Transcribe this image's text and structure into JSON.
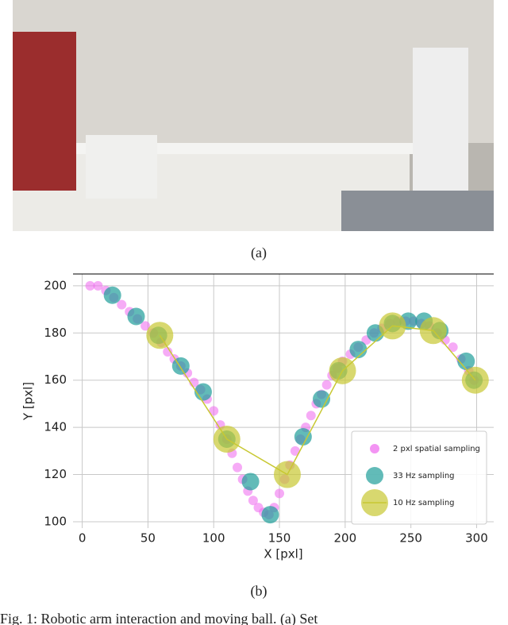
{
  "figure": {
    "sub_a": "(a)",
    "sub_b": "(b)",
    "caption": "Fig. 1: Robotic arm interaction and moving ball. (a) Set"
  },
  "chart_data": {
    "type": "scatter",
    "x_label": "X [pxl]",
    "y_label": "Y [pxl]",
    "xlim": [
      -7,
      313
    ],
    "ylim": [
      97.3,
      205
    ],
    "xticks": [
      0,
      50,
      100,
      150,
      200,
      250,
      300
    ],
    "yticks": [
      100,
      120,
      140,
      160,
      180,
      200
    ],
    "grid": true,
    "legend": "lower right",
    "series": [
      {
        "name": "2 pxl spatial sampling",
        "color": "#ee66ee",
        "x": [
          6,
          12,
          18,
          24,
          30,
          36,
          42,
          48,
          54,
          60,
          65,
          70,
          75,
          80,
          85,
          90,
          95,
          100,
          105,
          110,
          114,
          118,
          122,
          126,
          130,
          134,
          138,
          142,
          146,
          150,
          154,
          158,
          162,
          166,
          170,
          174,
          178,
          182,
          186,
          190,
          194,
          198,
          204,
          210,
          216,
          222,
          228,
          234,
          240,
          246,
          252,
          258,
          264,
          270,
          276,
          282,
          288,
          294,
          298
        ],
        "values": [
          200,
          200,
          198,
          195,
          192,
          189,
          186,
          183,
          180,
          176,
          172,
          169,
          166,
          163,
          159,
          156,
          152,
          147,
          141,
          135,
          129,
          123,
          118,
          113,
          109,
          106,
          104,
          103,
          106,
          112,
          118,
          124,
          130,
          135,
          140,
          145,
          150,
          154,
          158,
          162,
          165,
          168,
          171,
          174,
          177,
          180,
          182,
          184,
          185,
          185,
          185,
          184,
          183,
          180,
          177,
          174,
          169,
          164,
          160
        ]
      },
      {
        "name": "33 Hz sampling",
        "color": "#1f9e9a",
        "x": [
          23,
          41,
          58,
          75,
          92,
          110,
          128,
          143,
          168,
          182,
          195,
          210,
          223,
          236,
          248,
          260,
          272,
          292,
          298
        ],
        "values": [
          196,
          187,
          179,
          166,
          155,
          135,
          117,
          103,
          136,
          152,
          164,
          173,
          180,
          184,
          185,
          185,
          181,
          168,
          160
        ]
      },
      {
        "name": "10 Hz sampling",
        "color": "#c8c832",
        "line": true,
        "x": [
          59,
          110,
          156,
          198,
          236,
          267,
          299
        ],
        "values": [
          179,
          135,
          120,
          164,
          183,
          181,
          160
        ]
      }
    ]
  }
}
